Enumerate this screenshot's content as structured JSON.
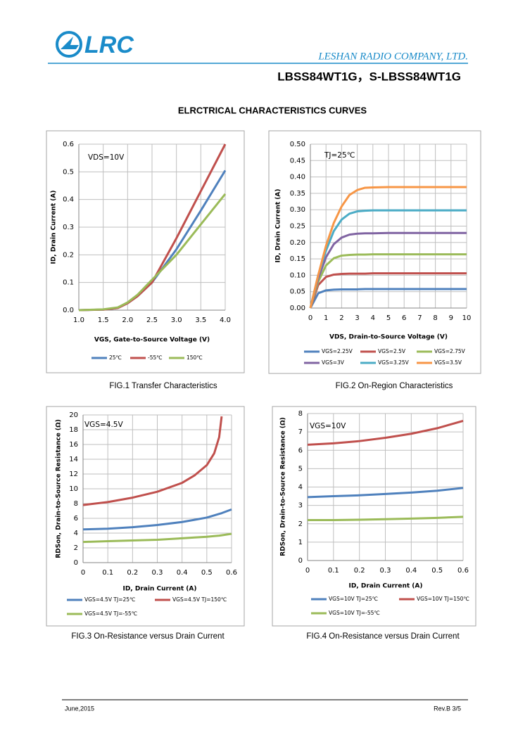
{
  "header": {
    "logo": "LRC",
    "company": "LESHAN RADIO COMPANY, LTD.",
    "part": "LBSS84WT1G，S-LBSS84WT1G",
    "section": "ELRCTRICAL CHARACTERISTICS CURVES"
  },
  "chart_data": [
    {
      "type": "line",
      "caption": "FIG.1 Transfer Characteristics",
      "annotation": "VDS=10V",
      "x_label": "VGS, Gate-to-Source Voltage (V)",
      "y_label": "ID, Drain Current (A)",
      "grid": true,
      "legend": "bottom",
      "x": [
        1.0,
        1.5,
        1.8,
        2.0,
        2.2,
        2.5,
        3.0,
        3.5,
        4.0
      ],
      "series": [
        {
          "name": "25℃",
          "color": "#4f81bd",
          "values": [
            0,
            0.002,
            0.008,
            0.025,
            0.05,
            0.1,
            0.22,
            0.36,
            0.505
          ]
        },
        {
          "name": "-55℃",
          "color": "#c0504d",
          "values": [
            0,
            0.002,
            0.008,
            0.025,
            0.05,
            0.1,
            0.26,
            0.43,
            0.6
          ]
        },
        {
          "name": "150℃",
          "color": "#9bbb59",
          "values": [
            0,
            0.003,
            0.01,
            0.028,
            0.055,
            0.11,
            0.2,
            0.31,
            0.42
          ]
        }
      ],
      "xlim": [
        1.0,
        4.0
      ],
      "xticks": [
        {
          "value": 1.0,
          "label": "1.0"
        },
        1.5,
        {
          "value": 2.0,
          "label": "2.0"
        },
        2.5,
        {
          "value": 3.0,
          "label": "3.0"
        },
        3.5,
        {
          "value": 4.0,
          "label": "4.0"
        }
      ],
      "ylim": [
        0,
        0.6
      ],
      "yticks": [
        {
          "value": 0,
          "label": "0.0"
        },
        0.1,
        0.2,
        0.3,
        0.4,
        0.5,
        0.6
      ]
    },
    {
      "type": "line",
      "caption": "FIG.2 On-Region Characteristics",
      "annotation": "TJ=25℃",
      "x_label": "VDS, Drain-to-Source Voltage (V)",
      "y_label": "ID, Drain Current (A)",
      "grid": true,
      "legend": "bottom",
      "x": [
        0,
        0.5,
        1,
        1.5,
        2,
        2.5,
        3,
        3.5,
        4,
        5,
        6,
        7,
        8,
        9,
        10
      ],
      "series": [
        {
          "name": "VGS=2.25V",
          "color": "#4f81bd",
          "values": [
            0,
            0.045,
            0.054,
            0.056,
            0.057,
            0.057,
            0.057,
            0.058,
            0.058,
            0.058,
            0.058,
            0.058,
            0.058,
            0.058,
            0.058
          ]
        },
        {
          "name": "VGS=2.5V",
          "color": "#c0504d",
          "values": [
            0,
            0.07,
            0.095,
            0.102,
            0.104,
            0.105,
            0.105,
            0.105,
            0.106,
            0.106,
            0.106,
            0.106,
            0.106,
            0.106,
            0.106
          ]
        },
        {
          "name": "VGS=2.75V",
          "color": "#9bbb59",
          "values": [
            0,
            0.08,
            0.13,
            0.152,
            0.16,
            0.162,
            0.163,
            0.163,
            0.164,
            0.164,
            0.164,
            0.164,
            0.164,
            0.164,
            0.164
          ]
        },
        {
          "name": "VGS=3V",
          "color": "#8064a2",
          "values": [
            0,
            0.09,
            0.155,
            0.195,
            0.215,
            0.224,
            0.227,
            0.228,
            0.228,
            0.229,
            0.229,
            0.229,
            0.229,
            0.229,
            0.229
          ]
        },
        {
          "name": "VGS=3.25V",
          "color": "#4bacc6",
          "values": [
            0,
            0.1,
            0.175,
            0.235,
            0.27,
            0.288,
            0.295,
            0.297,
            0.298,
            0.298,
            0.298,
            0.298,
            0.298,
            0.298,
            0.298
          ]
        },
        {
          "name": "VGS=3.5V",
          "color": "#f79646",
          "values": [
            0,
            0.1,
            0.19,
            0.26,
            0.31,
            0.345,
            0.36,
            0.367,
            0.368,
            0.369,
            0.369,
            0.369,
            0.369,
            0.369,
            0.369
          ]
        }
      ],
      "xlim": [
        0,
        10
      ],
      "xticks": [
        0,
        1,
        2,
        3,
        4,
        5,
        6,
        7,
        8,
        9,
        10
      ],
      "ylim": [
        0,
        0.5
      ],
      "yticks": [
        {
          "value": 0,
          "label": "0.00"
        },
        {
          "value": 0.05,
          "label": "0.05"
        },
        {
          "value": 0.1,
          "label": "0.10"
        },
        {
          "value": 0.15,
          "label": "0.15"
        },
        {
          "value": 0.2,
          "label": "0.20"
        },
        {
          "value": 0.25,
          "label": "0.25"
        },
        {
          "value": 0.3,
          "label": "0.30"
        },
        {
          "value": 0.35,
          "label": "0.35"
        },
        {
          "value": 0.4,
          "label": "0.40"
        },
        {
          "value": 0.45,
          "label": "0.45"
        },
        {
          "value": 0.5,
          "label": "0.50"
        }
      ]
    },
    {
      "type": "line",
      "caption": "FIG.3 On-Resistance versus Drain Current",
      "annotation": "VGS=4.5V",
      "x_label": "ID, Drain Current (A)",
      "y_label": "RDSon, Drain-to-Source Resistance (Ω)",
      "grid": true,
      "legend": "bottom",
      "x": [
        0,
        0.1,
        0.2,
        0.3,
        0.4,
        0.45,
        0.5,
        0.53,
        0.55,
        0.56,
        0.6
      ],
      "series": [
        {
          "name": "VGS=4.5V TJ=25℃",
          "color": "#4f81bd",
          "values": [
            4.5,
            4.6,
            4.8,
            5.1,
            5.5,
            5.8,
            6.1,
            6.4,
            6.6,
            6.7,
            7.2
          ]
        },
        {
          "name": "VGS=4.5V TJ=150℃",
          "color": "#c0504d",
          "values": [
            7.8,
            8.2,
            8.8,
            9.6,
            10.8,
            11.8,
            13.2,
            14.8,
            17,
            19.8,
            null
          ]
        },
        {
          "name": "VGS=4.5V TJ=-55℃",
          "color": "#9bbb59",
          "values": [
            2.8,
            2.9,
            3.0,
            3.1,
            3.3,
            3.4,
            3.5,
            3.6,
            3.65,
            3.7,
            3.9
          ]
        }
      ],
      "xlim": [
        0,
        0.6
      ],
      "xticks": [
        0,
        0.1,
        0.2,
        0.3,
        0.4,
        0.5,
        0.6
      ],
      "ylim": [
        0,
        20
      ],
      "yticks": [
        0,
        2,
        4,
        6,
        8,
        10,
        12,
        14,
        16,
        18,
        20
      ]
    },
    {
      "type": "line",
      "caption": "FIG.4 On-Resistance versus Drain Current",
      "annotation": "VGS=10V",
      "x_label": "ID, Drain Current (A)",
      "y_label": "RDSon, Drain-to-Source Resistance (Ω)",
      "grid": true,
      "legend": "bottom",
      "x": [
        0,
        0.1,
        0.2,
        0.3,
        0.4,
        0.5,
        0.6
      ],
      "series": [
        {
          "name": "VGS=10V TJ=25℃",
          "color": "#4f81bd",
          "values": [
            3.45,
            3.5,
            3.55,
            3.62,
            3.7,
            3.8,
            3.95
          ]
        },
        {
          "name": "VGS=10V TJ=150℃",
          "color": "#c0504d",
          "values": [
            6.3,
            6.38,
            6.5,
            6.68,
            6.9,
            7.2,
            7.6
          ]
        },
        {
          "name": "VGS=10V TJ=-55℃",
          "color": "#9bbb59",
          "values": [
            2.2,
            2.2,
            2.22,
            2.25,
            2.28,
            2.32,
            2.38
          ]
        }
      ],
      "xlim": [
        0,
        0.6
      ],
      "xticks": [
        0,
        0.1,
        0.2,
        0.3,
        0.4,
        0.5,
        0.6
      ],
      "ylim": [
        0,
        8
      ],
      "yticks": [
        0,
        1,
        2,
        3,
        4,
        5,
        6,
        7,
        8
      ]
    }
  ],
  "footer": {
    "date": "June,2015",
    "rev": "Rev.B 3/5"
  }
}
